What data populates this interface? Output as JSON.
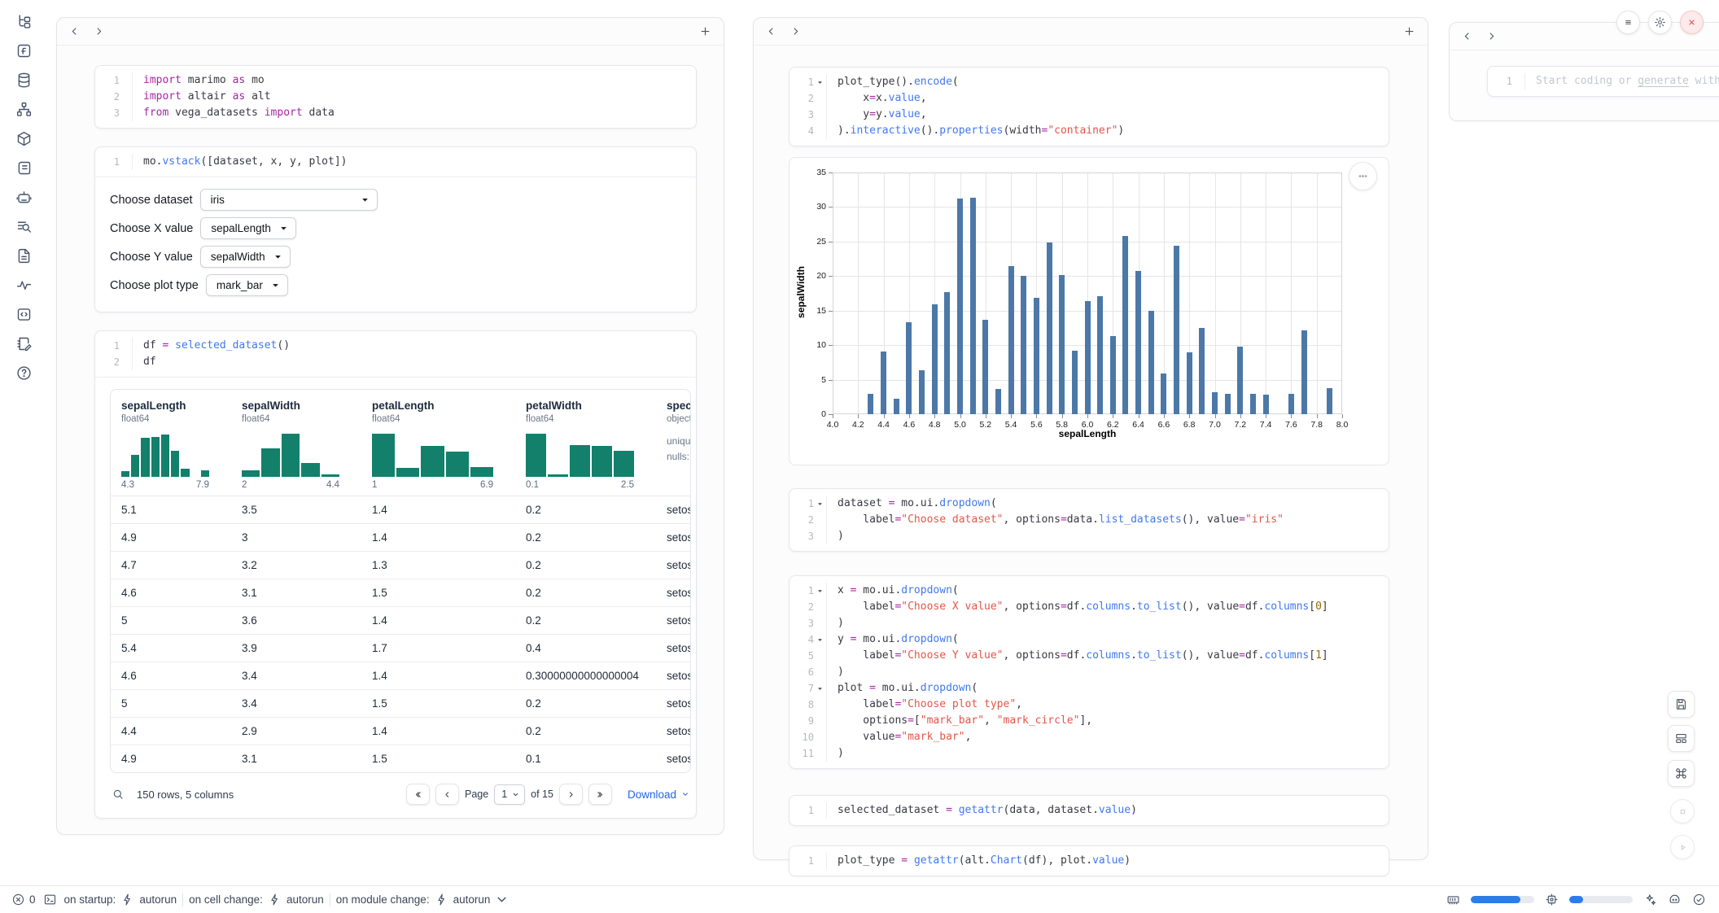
{
  "app": {
    "kind": "marimo notebook"
  },
  "colors": {
    "accent_blue": "#2b7de9",
    "bar_blue": "#4c78a8",
    "hist_teal": "#12806b",
    "link_blue": "#2563eb",
    "close_red": "#d9534f"
  },
  "rail": {
    "icons": [
      "tree",
      "function-square",
      "database",
      "org-chart",
      "box",
      "scroll",
      "chat-bot",
      "list-search",
      "document",
      "activity",
      "code-box",
      "notepad-edit",
      "help-circle"
    ]
  },
  "left_panel": {
    "cells": {
      "imports": {
        "lines": [
          {
            "n": "1",
            "tok": [
              [
                "import",
                "kw"
              ],
              [
                " marimo ",
                "pl"
              ],
              [
                "as",
                "kw"
              ],
              [
                " mo",
                "pl"
              ]
            ]
          },
          {
            "n": "2",
            "tok": [
              [
                "import",
                "kw"
              ],
              [
                " altair ",
                "pl"
              ],
              [
                "as",
                "kw"
              ],
              [
                " alt",
                "pl"
              ]
            ]
          },
          {
            "n": "3",
            "tok": [
              [
                "from",
                "kw"
              ],
              [
                " vega_datasets ",
                "pl"
              ],
              [
                "import",
                "kw"
              ],
              [
                " data",
                "pl"
              ]
            ]
          }
        ]
      },
      "vstack": {
        "lines": [
          {
            "n": "1",
            "tok": [
              [
                "mo.",
                "pl"
              ],
              [
                "vstack",
                "fn"
              ],
              [
                "([dataset, x, y, plot])",
                "pl"
              ]
            ]
          }
        ]
      },
      "df": {
        "lines": [
          {
            "n": "1",
            "tok": [
              [
                "df ",
                "pl"
              ],
              [
                "=",
                "op"
              ],
              [
                " ",
                "pl"
              ],
              [
                "selected_dataset",
                "fn"
              ],
              [
                "()",
                "pl"
              ]
            ]
          },
          {
            "n": "2",
            "tok": [
              [
                "df",
                "pl"
              ]
            ]
          }
        ]
      }
    },
    "controls": [
      {
        "label": "Choose dataset",
        "value": "iris"
      },
      {
        "label": "Choose X value",
        "value": "sepalLength"
      },
      {
        "label": "Choose Y value",
        "value": "sepalWidth"
      },
      {
        "label": "Choose plot type",
        "value": "mark_bar"
      }
    ],
    "table": {
      "columns": [
        {
          "name": "sepalLength",
          "dtype": "float64",
          "min": "4.3",
          "max": "7.9",
          "hist": [
            12,
            48,
            85,
            87,
            92,
            57,
            18,
            0,
            15
          ]
        },
        {
          "name": "sepalWidth",
          "dtype": "float64",
          "min": "2",
          "max": "4.4",
          "hist": [
            15,
            62,
            95,
            30,
            5
          ]
        },
        {
          "name": "petalLength",
          "dtype": "float64",
          "min": "1",
          "max": "6.9",
          "hist": [
            95,
            20,
            68,
            56,
            22
          ]
        },
        {
          "name": "petalWidth",
          "dtype": "float64",
          "min": "0.1",
          "max": "2.5",
          "hist": [
            95,
            5,
            70,
            68,
            58
          ]
        },
        {
          "name": "species",
          "dtype": "object",
          "meta": [
            "unique:",
            "nulls:"
          ]
        }
      ],
      "rows": [
        [
          "5.1",
          "3.5",
          "1.4",
          "0.2",
          "setosa"
        ],
        [
          "4.9",
          "3",
          "1.4",
          "0.2",
          "setosa"
        ],
        [
          "4.7",
          "3.2",
          "1.3",
          "0.2",
          "setosa"
        ],
        [
          "4.6",
          "3.1",
          "1.5",
          "0.2",
          "setosa"
        ],
        [
          "5",
          "3.6",
          "1.4",
          "0.2",
          "setosa"
        ],
        [
          "5.4",
          "3.9",
          "1.7",
          "0.4",
          "setosa"
        ],
        [
          "4.6",
          "3.4",
          "1.4",
          "0.30000000000000004",
          "setosa"
        ],
        [
          "5",
          "3.4",
          "1.5",
          "0.2",
          "setosa"
        ],
        [
          "4.4",
          "2.9",
          "1.4",
          "0.2",
          "setosa"
        ],
        [
          "4.9",
          "3.1",
          "1.5",
          "0.1",
          "setosa"
        ]
      ],
      "footer": {
        "summary": "150 rows, 5 columns",
        "page_label": "Page",
        "page_value": "1",
        "of_label": "of 15",
        "download_label": "Download"
      }
    }
  },
  "middle_panel": {
    "cells": {
      "plot": {
        "lines": [
          {
            "n": "1",
            "fold": true,
            "tok": [
              [
                "plot_type",
                "pl"
              ],
              [
                "().",
                "pl"
              ],
              [
                "encode",
                "fn"
              ],
              [
                "(",
                "pl"
              ]
            ]
          },
          {
            "n": "2",
            "tok": [
              [
                "    x",
                "pl"
              ],
              [
                "=",
                "op"
              ],
              [
                "x.",
                "pl"
              ],
              [
                "value",
                "fn"
              ],
              [
                ",",
                "pl"
              ]
            ]
          },
          {
            "n": "3",
            "tok": [
              [
                "    y",
                "pl"
              ],
              [
                "=",
                "op"
              ],
              [
                "y.",
                "pl"
              ],
              [
                "value",
                "fn"
              ],
              [
                ",",
                "pl"
              ]
            ]
          },
          {
            "n": "4",
            "tok": [
              [
                ").",
                "pl"
              ],
              [
                "interactive",
                "fn"
              ],
              [
                "().",
                "pl"
              ],
              [
                "properties",
                "fn"
              ],
              [
                "(width",
                "pl"
              ],
              [
                "=",
                "op"
              ],
              [
                "\"container\"",
                "str"
              ],
              [
                ")",
                "pl"
              ]
            ]
          }
        ]
      },
      "dataset": {
        "lines": [
          {
            "n": "1",
            "fold": true,
            "tok": [
              [
                "dataset ",
                "pl"
              ],
              [
                "=",
                "op"
              ],
              [
                " mo.ui.",
                "pl"
              ],
              [
                "dropdown",
                "fn"
              ],
              [
                "(",
                "pl"
              ]
            ]
          },
          {
            "n": "2",
            "tok": [
              [
                "    label",
                "pl"
              ],
              [
                "=",
                "op"
              ],
              [
                "\"Choose dataset\"",
                "str"
              ],
              [
                ", options",
                "pl"
              ],
              [
                "=",
                "op"
              ],
              [
                "data.",
                "pl"
              ],
              [
                "list_datasets",
                "fn"
              ],
              [
                "(), value",
                "pl"
              ],
              [
                "=",
                "op"
              ],
              [
                "\"iris\"",
                "str"
              ]
            ]
          },
          {
            "n": "3",
            "tok": [
              [
                ")",
                "pl"
              ]
            ]
          }
        ]
      },
      "xyplot": {
        "lines": [
          {
            "n": "1",
            "fold": true,
            "tok": [
              [
                "x ",
                "pl"
              ],
              [
                "=",
                "op"
              ],
              [
                " mo.ui.",
                "pl"
              ],
              [
                "dropdown",
                "fn"
              ],
              [
                "(",
                "pl"
              ]
            ]
          },
          {
            "n": "2",
            "tok": [
              [
                "    label",
                "pl"
              ],
              [
                "=",
                "op"
              ],
              [
                "\"Choose X value\"",
                "str"
              ],
              [
                ", options",
                "pl"
              ],
              [
                "=",
                "op"
              ],
              [
                "df.",
                "pl"
              ],
              [
                "columns",
                "fn"
              ],
              [
                ".",
                "pl"
              ],
              [
                "to_list",
                "fn"
              ],
              [
                "(), value",
                "pl"
              ],
              [
                "=",
                "op"
              ],
              [
                "df.",
                "pl"
              ],
              [
                "columns",
                "fn"
              ],
              [
                "[",
                "pl"
              ],
              [
                "0",
                "num"
              ],
              [
                "]",
                "pl"
              ]
            ]
          },
          {
            "n": "3",
            "tok": [
              [
                ")",
                "pl"
              ]
            ]
          },
          {
            "n": "4",
            "fold": true,
            "tok": [
              [
                "y ",
                "pl"
              ],
              [
                "=",
                "op"
              ],
              [
                " mo.ui.",
                "pl"
              ],
              [
                "dropdown",
                "fn"
              ],
              [
                "(",
                "pl"
              ]
            ]
          },
          {
            "n": "5",
            "tok": [
              [
                "    label",
                "pl"
              ],
              [
                "=",
                "op"
              ],
              [
                "\"Choose Y value\"",
                "str"
              ],
              [
                ", options",
                "pl"
              ],
              [
                "=",
                "op"
              ],
              [
                "df.",
                "pl"
              ],
              [
                "columns",
                "fn"
              ],
              [
                ".",
                "pl"
              ],
              [
                "to_list",
                "fn"
              ],
              [
                "(), value",
                "pl"
              ],
              [
                "=",
                "op"
              ],
              [
                "df.",
                "pl"
              ],
              [
                "columns",
                "fn"
              ],
              [
                "[",
                "pl"
              ],
              [
                "1",
                "num"
              ],
              [
                "]",
                "pl"
              ]
            ]
          },
          {
            "n": "6",
            "tok": [
              [
                ")",
                "pl"
              ]
            ]
          },
          {
            "n": "7",
            "fold": true,
            "tok": [
              [
                "plot ",
                "pl"
              ],
              [
                "=",
                "op"
              ],
              [
                " mo.ui.",
                "pl"
              ],
              [
                "dropdown",
                "fn"
              ],
              [
                "(",
                "pl"
              ]
            ]
          },
          {
            "n": "8",
            "tok": [
              [
                "    label",
                "pl"
              ],
              [
                "=",
                "op"
              ],
              [
                "\"Choose plot type\"",
                "str"
              ],
              [
                ",",
                "pl"
              ]
            ]
          },
          {
            "n": "9",
            "tok": [
              [
                "    options",
                "pl"
              ],
              [
                "=",
                "op"
              ],
              [
                "[",
                "pl"
              ],
              [
                "\"mark_bar\"",
                "str"
              ],
              [
                ", ",
                "pl"
              ],
              [
                "\"mark_circle\"",
                "str"
              ],
              [
                "],",
                "pl"
              ]
            ]
          },
          {
            "n": "10",
            "tok": [
              [
                "    value",
                "pl"
              ],
              [
                "=",
                "op"
              ],
              [
                "\"mark_bar\"",
                "str"
              ],
              [
                ",",
                "pl"
              ]
            ]
          },
          {
            "n": "11",
            "tok": [
              [
                ")",
                "pl"
              ]
            ]
          }
        ]
      },
      "selected": {
        "lines": [
          {
            "n": "1",
            "tok": [
              [
                "selected_dataset ",
                "pl"
              ],
              [
                "=",
                "op"
              ],
              [
                " ",
                "pl"
              ],
              [
                "getattr",
                "fn"
              ],
              [
                "(data, dataset.",
                "pl"
              ],
              [
                "value",
                "fn"
              ],
              [
                ")",
                "pl"
              ]
            ]
          }
        ]
      },
      "plot_type": {
        "lines": [
          {
            "n": "1",
            "tok": [
              [
                "plot_type ",
                "pl"
              ],
              [
                "=",
                "op"
              ],
              [
                " ",
                "pl"
              ],
              [
                "getattr",
                "fn"
              ],
              [
                "(alt.",
                "pl"
              ],
              [
                "Chart",
                "fn"
              ],
              [
                "(df), plot.",
                "pl"
              ],
              [
                "value",
                "fn"
              ],
              [
                ")",
                "pl"
              ]
            ]
          }
        ]
      }
    }
  },
  "right_panel": {
    "line_number": "1",
    "placeholder_pre": "Start coding or ",
    "placeholder_link": "generate",
    "placeholder_post": " with"
  },
  "status_bar": {
    "error_count": "0",
    "items": [
      {
        "label": "on startup:",
        "value": "autorun"
      },
      {
        "label": "on cell change:",
        "value": "autorun"
      },
      {
        "label": "on module change:",
        "value": "autorun",
        "dropdown": true
      }
    ],
    "memory_pct": 78,
    "cpu_pct": 22
  },
  "chart_data": {
    "type": "bar",
    "title": "",
    "xlabel": "sepalLength",
    "ylabel": "sepalWidth",
    "xlim": [
      4.0,
      8.0
    ],
    "ylim": [
      0,
      35
    ],
    "x_tick_step": 0.2,
    "y_tick_step": 5,
    "grid": true,
    "legend": false,
    "bar_color": "#4c78a8",
    "x": [
      4.3,
      4.4,
      4.5,
      4.6,
      4.7,
      4.8,
      4.9,
      5.0,
      5.1,
      5.2,
      5.3,
      5.4,
      5.5,
      5.6,
      5.7,
      5.8,
      5.9,
      6.0,
      6.1,
      6.2,
      6.3,
      6.4,
      6.5,
      6.6,
      6.7,
      6.8,
      6.9,
      7.0,
      7.1,
      7.2,
      7.3,
      7.4,
      7.6,
      7.7,
      7.9
    ],
    "y": [
      3.0,
      9.1,
      2.3,
      13.3,
      6.4,
      15.9,
      17.7,
      31.2,
      31.4,
      13.7,
      3.7,
      21.4,
      20.0,
      16.9,
      24.9,
      20.2,
      9.2,
      16.4,
      17.1,
      11.3,
      25.8,
      20.8,
      15.0,
      5.9,
      24.4,
      9.0,
      12.5,
      3.2,
      3.0,
      9.8,
      2.9,
      2.8,
      3.0,
      12.2,
      3.8
    ]
  }
}
